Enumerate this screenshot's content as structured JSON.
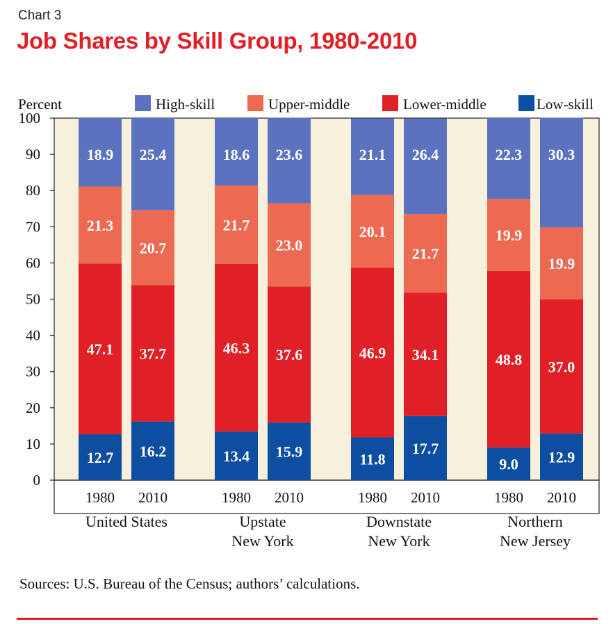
{
  "header": {
    "chart_label": "Chart 3",
    "title": "Job Shares by Skill Group, 1980-2010"
  },
  "footer": {
    "source": "Sources: U.S. Bureau of the Census; authors’ calculations."
  },
  "colors": {
    "title": "#e01f26",
    "high_skill": "#5b72be",
    "upper_middle": "#ec6a52",
    "lower_middle": "#e01f26",
    "low_skill": "#0e4ea0",
    "plot_background": "#f6f0dc",
    "rule": "#e01f26"
  },
  "chart_data": {
    "type": "bar",
    "stacked": true,
    "title": "Job Shares by Skill Group, 1980-2010",
    "ylabel": "Percent",
    "ylim": [
      0,
      100
    ],
    "yticks": [
      0,
      10,
      20,
      30,
      40,
      50,
      60,
      70,
      80,
      90,
      100
    ],
    "legend_position": "top",
    "grid": false,
    "groups": [
      {
        "label_lines": [
          "United States"
        ],
        "categories": [
          "1980",
          "2010"
        ]
      },
      {
        "label_lines": [
          "Upstate",
          "New York"
        ],
        "categories": [
          "1980",
          "2010"
        ]
      },
      {
        "label_lines": [
          "Downstate",
          "New York"
        ],
        "categories": [
          "1980",
          "2010"
        ]
      },
      {
        "label_lines": [
          "Northern",
          "New Jersey"
        ],
        "categories": [
          "1980",
          "2010"
        ]
      }
    ],
    "series": [
      {
        "name": "Low-skill",
        "color": "#0e4ea0",
        "values": [
          12.7,
          16.2,
          13.4,
          15.9,
          11.8,
          17.7,
          9.0,
          12.9
        ],
        "labels": [
          "12.7",
          "16.2",
          "13.4",
          "15.9",
          "11.8",
          "17.7",
          "9.0",
          "12.9"
        ]
      },
      {
        "name": "Lower-middle",
        "color": "#e01f26",
        "values": [
          47.1,
          37.7,
          46.3,
          37.6,
          46.9,
          34.1,
          48.8,
          37.0
        ],
        "labels": [
          "47.1",
          "37.7",
          "46.3",
          "37.6",
          "46.9",
          "34.1",
          "48.8",
          "37.0"
        ]
      },
      {
        "name": "Upper-middle",
        "color": "#ec6a52",
        "values": [
          21.3,
          20.7,
          21.7,
          23.0,
          20.1,
          21.7,
          19.9,
          19.9
        ],
        "labels": [
          "21.3",
          "20.7",
          "21.7",
          "23.0",
          "20.1",
          "21.7",
          "19.9",
          "19.9"
        ]
      },
      {
        "name": "High-skill",
        "color": "#5b72be",
        "values": [
          18.9,
          25.4,
          18.6,
          23.6,
          21.1,
          26.4,
          22.3,
          30.3
        ],
        "labels": [
          "18.9",
          "25.4",
          "18.6",
          "23.6",
          "21.1",
          "26.4",
          "22.3",
          "30.3"
        ]
      }
    ],
    "legend_order": [
      "High-skill",
      "Upper-middle",
      "Lower-middle",
      "Low-skill"
    ]
  }
}
